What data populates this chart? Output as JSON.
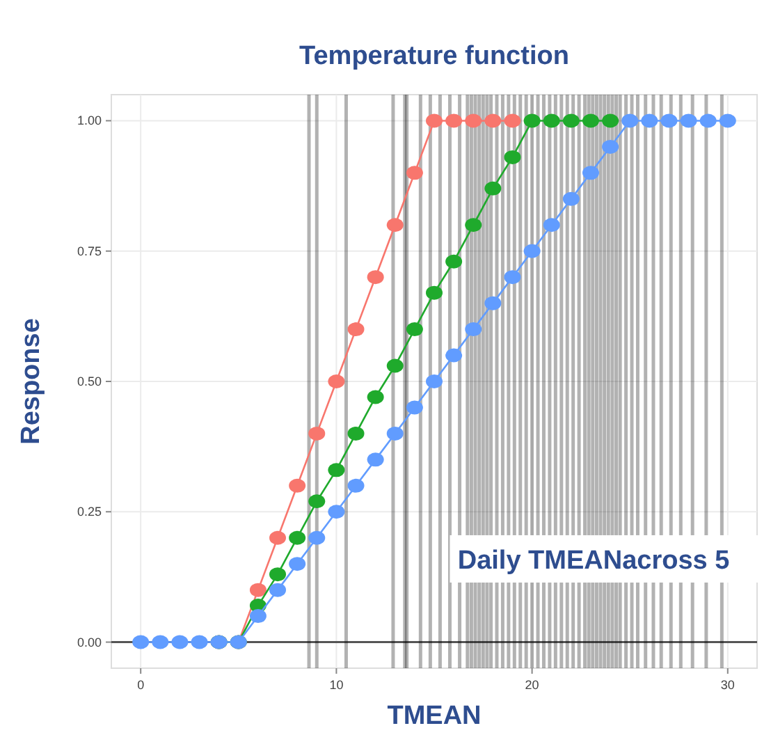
{
  "chart_data": {
    "type": "line",
    "title": "Temperature function",
    "xlabel": "TMEAN",
    "ylabel": "Response",
    "x": [
      0,
      1,
      2,
      3,
      4,
      5,
      6,
      7,
      8,
      9,
      10,
      11,
      12,
      13,
      14,
      15,
      16,
      17,
      18,
      19,
      20,
      21,
      22,
      23,
      24,
      25,
      26,
      27,
      28,
      29,
      30
    ],
    "series": [
      {
        "color": "#f8766d",
        "values": [
          null,
          null,
          null,
          null,
          0,
          0,
          0.1,
          0.2,
          0.3,
          0.4,
          0.5,
          0.6,
          0.7,
          0.8,
          0.9,
          1,
          1,
          1,
          1,
          1,
          null,
          null,
          null,
          null,
          null,
          null,
          null,
          null,
          null,
          null,
          null
        ]
      },
      {
        "color": "#1faa2c",
        "values": [
          null,
          null,
          null,
          null,
          0,
          0,
          0.07,
          0.13,
          0.2,
          0.27,
          0.33,
          0.4,
          0.47,
          0.53,
          0.6,
          0.67,
          0.73,
          0.8,
          0.87,
          0.93,
          1,
          1,
          1,
          1,
          1,
          null,
          null,
          null,
          null,
          null,
          null
        ]
      },
      {
        "color": "#619cff",
        "values": [
          0,
          0,
          0,
          0,
          0,
          0,
          0.05,
          0.1,
          0.15,
          0.2,
          0.25,
          0.3,
          0.35,
          0.4,
          0.45,
          0.5,
          0.55,
          0.6,
          0.65,
          0.7,
          0.75,
          0.8,
          0.85,
          0.9,
          0.95,
          1,
          1,
          1,
          1,
          1,
          1
        ]
      }
    ],
    "marker": "circle",
    "line_style": "solid",
    "grid": true,
    "xlim": [
      -1.5,
      31.5
    ],
    "xticks": [
      0,
      10,
      20,
      30
    ],
    "ylim": [
      -0.05,
      1.05
    ],
    "yticks": [
      {
        "value": 0,
        "label": "0.00"
      },
      {
        "value": 0.25,
        "label": "0.25"
      },
      {
        "value": 0.5,
        "label": "0.50"
      },
      {
        "value": 0.75,
        "label": "0.75"
      },
      {
        "value": 1,
        "label": "1.00"
      }
    ],
    "ref_lines": [
      {
        "axis": "y",
        "value": 0,
        "color": "#555555"
      },
      {
        "axis": "x",
        "value": 8.6,
        "color": "#000000"
      },
      {
        "axis": "x",
        "value": 9.0,
        "color": "#000000"
      },
      {
        "axis": "x",
        "value": 10.5,
        "color": "#000000"
      },
      {
        "axis": "x",
        "value": 12.9,
        "color": "#000000"
      },
      {
        "axis": "x",
        "value": 13.5,
        "color": "#000000"
      },
      {
        "axis": "x",
        "value": 13.6,
        "color": "#000000"
      },
      {
        "axis": "x",
        "value": 14.3,
        "color": "#000000"
      },
      {
        "axis": "x",
        "value": 14.8,
        "color": "#000000"
      },
      {
        "axis": "x",
        "value": 15.3,
        "color": "#000000"
      },
      {
        "axis": "x",
        "value": 15.8,
        "color": "#000000"
      },
      {
        "axis": "x",
        "value": 16.3,
        "color": "#000000"
      },
      {
        "axis": "x",
        "value": 16.7,
        "color": "#000000"
      },
      {
        "axis": "x",
        "value": 16.9,
        "color": "#000000"
      },
      {
        "axis": "x",
        "value": 17.1,
        "color": "#000000"
      },
      {
        "axis": "x",
        "value": 17.3,
        "color": "#000000"
      },
      {
        "axis": "x",
        "value": 17.5,
        "color": "#000000"
      },
      {
        "axis": "x",
        "value": 17.7,
        "color": "#000000"
      },
      {
        "axis": "x",
        "value": 17.9,
        "color": "#000000"
      },
      {
        "axis": "x",
        "value": 18.2,
        "color": "#000000"
      },
      {
        "axis": "x",
        "value": 18.5,
        "color": "#000000"
      },
      {
        "axis": "x",
        "value": 18.8,
        "color": "#000000"
      },
      {
        "axis": "x",
        "value": 19.1,
        "color": "#000000"
      },
      {
        "axis": "x",
        "value": 19.4,
        "color": "#000000"
      },
      {
        "axis": "x",
        "value": 19.7,
        "color": "#000000"
      },
      {
        "axis": "x",
        "value": 20.0,
        "color": "#000000"
      },
      {
        "axis": "x",
        "value": 20.3,
        "color": "#000000"
      },
      {
        "axis": "x",
        "value": 20.6,
        "color": "#000000"
      },
      {
        "axis": "x",
        "value": 20.9,
        "color": "#000000"
      },
      {
        "axis": "x",
        "value": 21.2,
        "color": "#000000"
      },
      {
        "axis": "x",
        "value": 21.5,
        "color": "#000000"
      },
      {
        "axis": "x",
        "value": 21.8,
        "color": "#000000"
      },
      {
        "axis": "x",
        "value": 22.1,
        "color": "#000000"
      },
      {
        "axis": "x",
        "value": 22.4,
        "color": "#000000"
      },
      {
        "axis": "x",
        "value": 22.7,
        "color": "#000000"
      },
      {
        "axis": "x",
        "value": 22.9,
        "color": "#000000"
      },
      {
        "axis": "x",
        "value": 23.1,
        "color": "#000000"
      },
      {
        "axis": "x",
        "value": 23.3,
        "color": "#000000"
      },
      {
        "axis": "x",
        "value": 23.5,
        "color": "#000000"
      },
      {
        "axis": "x",
        "value": 23.7,
        "color": "#000000"
      },
      {
        "axis": "x",
        "value": 23.9,
        "color": "#000000"
      },
      {
        "axis": "x",
        "value": 24.1,
        "color": "#000000"
      },
      {
        "axis": "x",
        "value": 24.3,
        "color": "#000000"
      },
      {
        "axis": "x",
        "value": 24.5,
        "color": "#000000"
      },
      {
        "axis": "x",
        "value": 24.8,
        "color": "#000000"
      },
      {
        "axis": "x",
        "value": 25.1,
        "color": "#000000"
      },
      {
        "axis": "x",
        "value": 25.4,
        "color": "#000000"
      },
      {
        "axis": "x",
        "value": 25.8,
        "color": "#000000"
      },
      {
        "axis": "x",
        "value": 26.2,
        "color": "#000000"
      },
      {
        "axis": "x",
        "value": 26.6,
        "color": "#000000"
      },
      {
        "axis": "x",
        "value": 27.1,
        "color": "#000000"
      },
      {
        "axis": "x",
        "value": 27.6,
        "color": "#000000"
      },
      {
        "axis": "x",
        "value": 28.2,
        "color": "#000000"
      },
      {
        "axis": "x",
        "value": 28.9,
        "color": "#000000"
      },
      {
        "axis": "x",
        "value": 29.7,
        "color": "#000000"
      }
    ],
    "annotations": [
      "Daily TMEANacross 5"
    ]
  }
}
